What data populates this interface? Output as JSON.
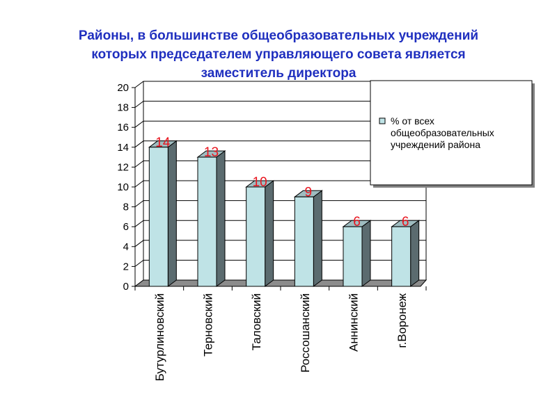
{
  "chart_data": {
    "type": "bar",
    "title_lines": [
      "Районы, в большинстве общеобразовательных учреждений",
      "которых председателем управляющего совета является",
      "заместитель директора"
    ],
    "categories": [
      "Бутурлиновский",
      "Терновский",
      "Таловский",
      "Россошанский",
      "Аннинский",
      "г.Воронеж"
    ],
    "series": [
      {
        "name_lines": [
          "% от всех",
          "общеобразовательных",
          "учреждений района"
        ],
        "values": [
          14,
          13,
          10,
          9,
          6,
          6
        ],
        "color": "#bfe3e6"
      }
    ],
    "data_labels": [
      "14",
      "13",
      "10",
      "9",
      "6",
      "6"
    ],
    "ylim": [
      0,
      20
    ],
    "y_ticks": [
      "0",
      "2",
      "4",
      "6",
      "8",
      "10",
      "12",
      "14",
      "16",
      "18",
      "20"
    ],
    "grid": true,
    "legend_position": "top-right",
    "data_label_color": "#e8141e"
  }
}
